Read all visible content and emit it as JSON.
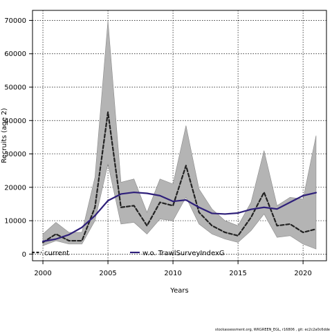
{
  "chart_data": {
    "type": "line",
    "xlabel": "Years",
    "ylabel": "Recruits (age 2)",
    "xlim": [
      1999.2,
      2021.8
    ],
    "ylim": [
      -2000,
      73000
    ],
    "xticks": [
      2000,
      2005,
      2010,
      2015,
      2020
    ],
    "yticks": [
      0,
      10000,
      20000,
      30000,
      40000,
      50000,
      60000,
      70000
    ],
    "grid": true,
    "legend_position": "bottom",
    "x": [
      2000,
      2001,
      2002,
      2003,
      2004,
      2005,
      2006,
      2007,
      2008,
      2009,
      2010,
      2011,
      2012,
      2013,
      2014,
      2015,
      2016,
      2017,
      2018,
      2019,
      2020,
      2021
    ],
    "series": [
      {
        "name": "current",
        "color": "#222222",
        "style": "dashed",
        "values": [
          3500,
          6000,
          4000,
          4000,
          14000,
          42500,
          14000,
          14500,
          8500,
          15500,
          14500,
          26500,
          12500,
          8500,
          6500,
          5500,
          11000,
          18500,
          8500,
          9000,
          6500,
          7500
        ],
        "lower": [
          2500,
          4000,
          3000,
          3000,
          10000,
          27000,
          9000,
          9500,
          6000,
          10500,
          10000,
          17000,
          9000,
          6000,
          4500,
          3500,
          7000,
          12000,
          5000,
          5500,
          3000,
          1500
        ],
        "upper": [
          6000,
          9500,
          6500,
          6500,
          23000,
          70000,
          21500,
          22500,
          12500,
          22500,
          21000,
          38500,
          19500,
          13500,
          10000,
          8500,
          15500,
          31000,
          14500,
          17000,
          16500,
          35500
        ]
      },
      {
        "name": "w.o. TrawlSurveyIndexG",
        "color": "#2e1f7a",
        "style": "solid",
        "values": [
          3800,
          4500,
          5800,
          8000,
          11500,
          16000,
          18000,
          18500,
          18200,
          17500,
          15800,
          16200,
          14000,
          12200,
          12000,
          12300,
          13400,
          14000,
          13500,
          15500,
          17500,
          18400
        ]
      }
    ],
    "legend": [
      {
        "label": "current"
      },
      {
        "label": "w.o. TrawlSurveyIndexG"
      }
    ],
    "footer": "stockassessment.org, WKGREEN_EGL, r16806 ,  git: ec2c2a0c6dde"
  }
}
